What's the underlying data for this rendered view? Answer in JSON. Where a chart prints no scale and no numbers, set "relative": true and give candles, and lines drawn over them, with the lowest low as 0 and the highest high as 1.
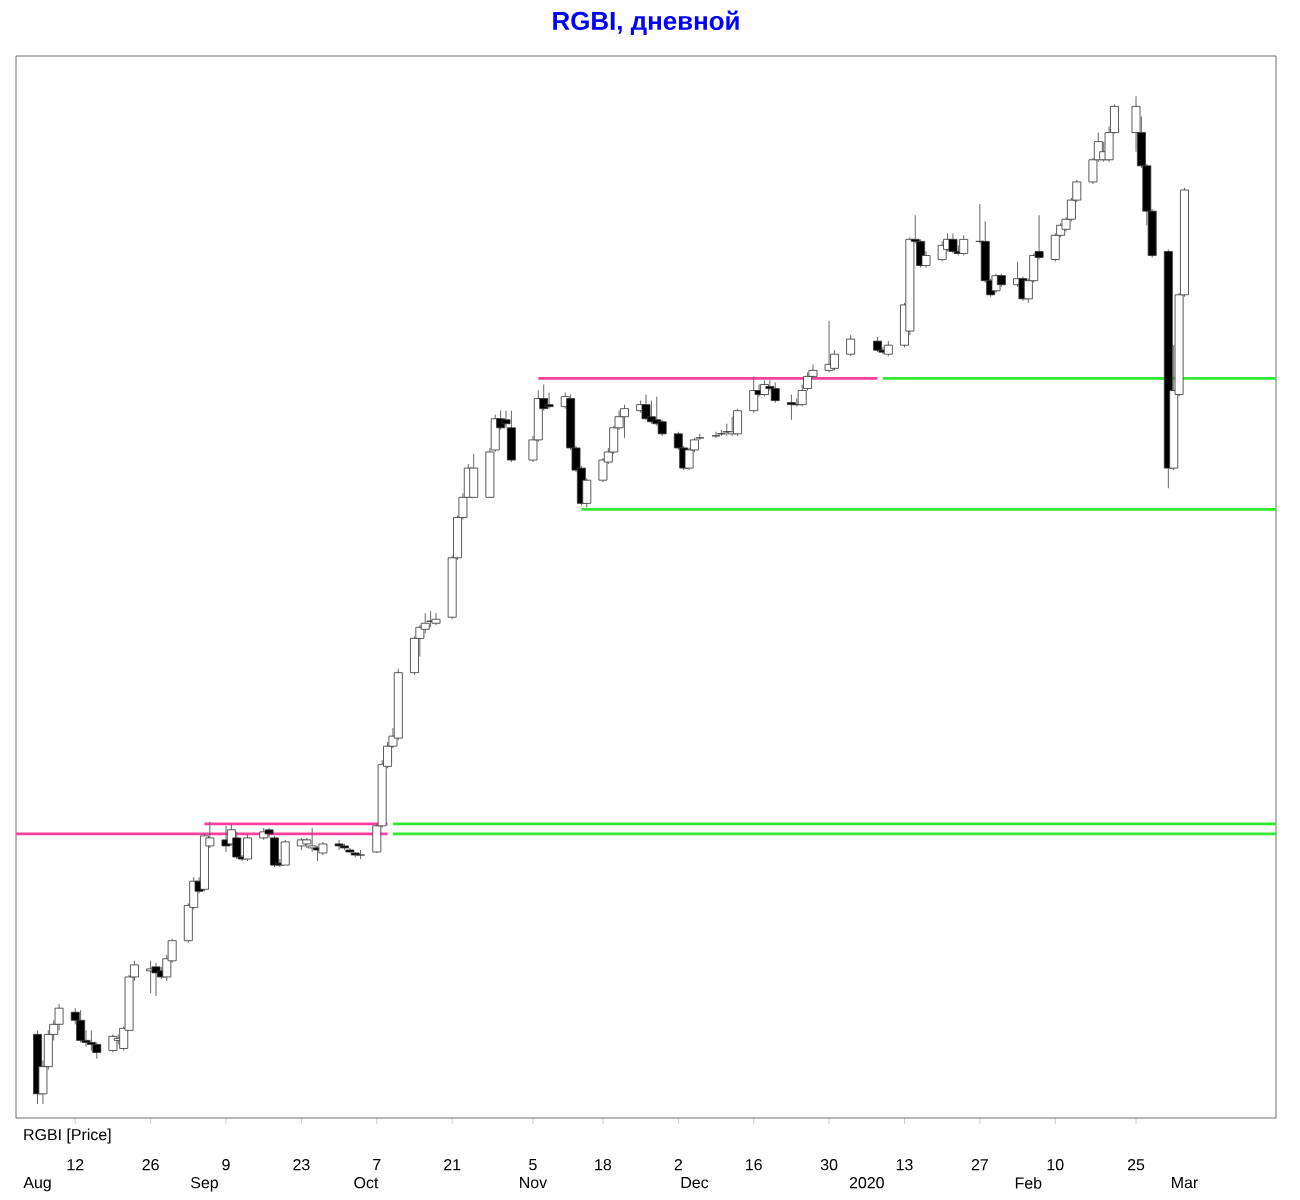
{
  "chart_data": {
    "type": "candlestick",
    "title": "RGBI, дневной",
    "relative": true,
    "x": [
      "2019-08-05",
      "2019-08-06",
      "2019-08-07",
      "2019-08-08",
      "2019-08-09",
      "2019-08-12",
      "2019-08-13",
      "2019-08-14",
      "2019-08-15",
      "2019-08-16",
      "2019-08-19",
      "2019-08-20",
      "2019-08-21",
      "2019-08-22",
      "2019-08-23",
      "2019-08-26",
      "2019-08-27",
      "2019-08-28",
      "2019-08-29",
      "2019-08-30",
      "2019-09-02",
      "2019-09-03",
      "2019-09-04",
      "2019-09-05",
      "2019-09-06",
      "2019-09-09",
      "2019-09-10",
      "2019-09-11",
      "2019-09-12",
      "2019-09-13",
      "2019-09-16",
      "2019-09-17",
      "2019-09-18",
      "2019-09-19",
      "2019-09-20",
      "2019-09-23",
      "2019-09-24",
      "2019-09-25",
      "2019-09-26",
      "2019-09-27",
      "2019-09-30",
      "2019-10-01",
      "2019-10-02",
      "2019-10-03",
      "2019-10-04",
      "2019-10-07",
      "2019-10-08",
      "2019-10-09",
      "2019-10-10",
      "2019-10-11",
      "2019-10-14",
      "2019-10-15",
      "2019-10-16",
      "2019-10-17",
      "2019-10-18",
      "2019-10-21",
      "2019-10-22",
      "2019-10-23",
      "2019-10-24",
      "2019-10-25",
      "2019-10-28",
      "2019-10-29",
      "2019-10-30",
      "2019-10-31",
      "2019-11-01",
      "2019-11-05",
      "2019-11-06",
      "2019-11-07",
      "2019-11-08",
      "2019-11-11",
      "2019-11-12",
      "2019-11-13",
      "2019-11-14",
      "2019-11-15",
      "2019-11-18",
      "2019-11-19",
      "2019-11-20",
      "2019-11-21",
      "2019-11-22",
      "2019-11-25",
      "2019-11-26",
      "2019-11-27",
      "2019-11-28",
      "2019-11-29",
      "2019-12-02",
      "2019-12-03",
      "2019-12-04",
      "2019-12-05",
      "2019-12-06",
      "2019-12-09",
      "2019-12-10",
      "2019-12-11",
      "2019-12-12",
      "2019-12-13",
      "2019-12-16",
      "2019-12-17",
      "2019-12-18",
      "2019-12-19",
      "2019-12-20",
      "2019-12-23",
      "2019-12-24",
      "2019-12-25",
      "2019-12-26",
      "2019-12-27",
      "2019-12-30",
      "2019-12-31",
      "2020-01-03",
      "2020-01-08",
      "2020-01-09",
      "2020-01-10",
      "2020-01-13",
      "2020-01-14",
      "2020-01-15",
      "2020-01-16",
      "2020-01-17",
      "2020-01-20",
      "2020-01-21",
      "2020-01-22",
      "2020-01-23",
      "2020-01-24",
      "2020-01-27",
      "2020-01-28",
      "2020-01-29",
      "2020-01-30",
      "2020-01-31",
      "2020-02-03",
      "2020-02-04",
      "2020-02-05",
      "2020-02-06",
      "2020-02-07",
      "2020-02-10",
      "2020-02-11",
      "2020-02-12",
      "2020-02-13",
      "2020-02-14",
      "2020-02-17",
      "2020-02-18",
      "2020-02-19",
      "2020-02-20",
      "2020-02-21",
      "2020-02-25",
      "2020-02-26",
      "2020-02-27",
      "2020-02-28",
      "2020-03-02",
      "2020-03-03",
      "2020-03-04",
      "2020-03-05"
    ],
    "ohlc": [
      [
        0.069,
        0.073,
        0,
        0.01
      ],
      [
        0.01,
        0.043,
        0,
        0.037
      ],
      [
        0.037,
        0.073,
        0.034,
        0.069
      ],
      [
        0.069,
        0.083,
        0.063,
        0.079
      ],
      [
        0.079,
        0.099,
        0.073,
        0.095
      ],
      [
        0.091,
        0.095,
        0.079,
        0.083
      ],
      [
        0.083,
        0.093,
        0.061,
        0.063
      ],
      [
        0.063,
        0.073,
        0.057,
        0.061
      ],
      [
        0.061,
        0.073,
        0.053,
        0.059
      ],
      [
        0.059,
        0.061,
        0.045,
        0.051
      ],
      [
        0.053,
        0.069,
        0.051,
        0.067
      ],
      [
        0.063,
        0.069,
        0.059,
        0.065
      ],
      [
        0.055,
        0.077,
        0.053,
        0.075
      ],
      [
        0.073,
        0.128,
        0.073,
        0.126
      ],
      [
        0.126,
        0.142,
        0.122,
        0.138
      ],
      [
        0.132,
        0.142,
        0.11,
        0.134
      ],
      [
        0.136,
        0.14,
        0.107,
        0.13
      ],
      [
        0.132,
        0.136,
        0.124,
        0.126
      ],
      [
        0.126,
        0.148,
        0.122,
        0.144
      ],
      [
        0.142,
        0.164,
        0.14,
        0.162
      ],
      [
        0.162,
        0.199,
        0.16,
        0.197
      ],
      [
        0.195,
        0.225,
        0.193,
        0.221
      ],
      [
        0.221,
        0.225,
        0.209,
        0.211
      ],
      [
        0.213,
        0.268,
        0.211,
        0.266
      ],
      [
        0.256,
        0.28,
        0.254,
        0.264
      ],
      [
        0.262,
        0.276,
        0.25,
        0.256
      ],
      [
        0.258,
        0.278,
        0.256,
        0.272
      ],
      [
        0.264,
        0.27,
        0.243,
        0.245
      ],
      [
        0.245,
        0.247,
        0.241,
        0.243
      ],
      [
        0.243,
        0.268,
        0.241,
        0.264
      ],
      [
        0.264,
        0.274,
        0.262,
        0.27
      ],
      [
        0.272,
        0.274,
        0.264,
        0.268
      ],
      [
        0.264,
        0.266,
        0.235,
        0.237
      ],
      [
        0.239,
        0.243,
        0.235,
        0.237
      ],
      [
        0.237,
        0.262,
        0.237,
        0.26
      ],
      [
        0.256,
        0.264,
        0.252,
        0.262
      ],
      [
        0.258,
        0.264,
        0.254,
        0.262
      ],
      [
        0.254,
        0.274,
        0.25,
        0.256
      ],
      [
        0.254,
        0.256,
        0.241,
        0.252
      ],
      [
        0.249,
        0.26,
        0.247,
        0.258
      ],
      [
        0.258,
        0.262,
        0.252,
        0.256
      ],
      [
        0.256,
        0.258,
        0.252,
        0.254
      ],
      [
        0.252,
        0.254,
        0.249,
        0.25
      ],
      [
        0.249,
        0.25,
        0.245,
        0.247
      ],
      [
        0.247,
        0.252,
        0.243,
        0.247
      ],
      [
        0.25,
        0.278,
        0.249,
        0.276
      ],
      [
        0.276,
        0.341,
        0.274,
        0.337
      ],
      [
        0.335,
        0.359,
        0.333,
        0.355
      ],
      [
        0.355,
        0.373,
        0.353,
        0.365
      ],
      [
        0.363,
        0.432,
        0.361,
        0.428
      ],
      [
        0.428,
        0.464,
        0.426,
        0.462
      ],
      [
        0.462,
        0.475,
        0.444,
        0.473
      ],
      [
        0.471,
        0.487,
        0.467,
        0.477
      ],
      [
        0.479,
        0.489,
        0.473,
        0.479
      ],
      [
        0.477,
        0.487,
        0.475,
        0.481
      ],
      [
        0.483,
        0.544,
        0.481,
        0.542
      ],
      [
        0.542,
        0.584,
        0.54,
        0.582
      ],
      [
        0.582,
        0.606,
        0.58,
        0.602
      ],
      [
        0.602,
        0.635,
        0.602,
        0.631
      ],
      [
        0.602,
        0.645,
        0.602,
        0.631
      ],
      [
        0.602,
        0.651,
        0.602,
        0.647
      ],
      [
        0.649,
        0.684,
        0.647,
        0.68
      ],
      [
        0.68,
        0.688,
        0.669,
        0.671
      ],
      [
        0.679,
        0.688,
        0.671,
        0.675
      ],
      [
        0.671,
        0.688,
        0.637,
        0.639
      ],
      [
        0.639,
        0.663,
        0.637,
        0.659
      ],
      [
        0.659,
        0.708,
        0.657,
        0.7
      ],
      [
        0.7,
        0.714,
        0.688,
        0.69
      ],
      [
        0.694,
        0.706,
        0.69,
        0.692
      ],
      [
        0.692,
        0.706,
        0.69,
        0.702
      ],
      [
        0.7,
        0.704,
        0.649,
        0.651
      ],
      [
        0.651,
        0.653,
        0.627,
        0.629
      ],
      [
        0.631,
        0.633,
        0.594,
        0.596
      ],
      [
        0.596,
        0.621,
        0.592,
        0.619
      ],
      [
        0.619,
        0.641,
        0.617,
        0.639
      ],
      [
        0.637,
        0.651,
        0.635,
        0.647
      ],
      [
        0.647,
        0.673,
        0.645,
        0.671
      ],
      [
        0.671,
        0.688,
        0.669,
        0.682
      ],
      [
        0.682,
        0.694,
        0.661,
        0.69
      ],
      [
        0.688,
        0.698,
        0.686,
        0.694
      ],
      [
        0.694,
        0.704,
        0.679,
        0.68
      ],
      [
        0.682,
        0.698,
        0.675,
        0.677
      ],
      [
        0.679,
        0.702,
        0.673,
        0.675
      ],
      [
        0.677,
        0.679,
        0.663,
        0.665
      ],
      [
        0.665,
        0.667,
        0.649,
        0.651
      ],
      [
        0.651,
        0.653,
        0.629,
        0.631
      ],
      [
        0.631,
        0.651,
        0.629,
        0.649
      ],
      [
        0.649,
        0.661,
        0.647,
        0.659
      ],
      [
        0.661,
        0.665,
        0.659,
        0.661
      ],
      [
        0.663,
        0.667,
        0.661,
        0.663
      ],
      [
        0.665,
        0.669,
        0.663,
        0.665
      ],
      [
        0.667,
        0.675,
        0.663,
        0.667
      ],
      [
        0.665,
        0.682,
        0.663,
        0.667
      ],
      [
        0.665,
        0.69,
        0.663,
        0.688
      ],
      [
        0.688,
        0.722,
        0.686,
        0.708
      ],
      [
        0.708,
        0.714,
        0.702,
        0.704
      ],
      [
        0.704,
        0.718,
        0.702,
        0.714
      ],
      [
        0.712,
        0.718,
        0.708,
        0.71
      ],
      [
        0.71,
        0.716,
        0.696,
        0.698
      ],
      [
        0.696,
        0.704,
        0.679,
        0.694
      ],
      [
        0.694,
        0.7,
        0.692,
        0.694
      ],
      [
        0.694,
        0.714,
        0.692,
        0.708
      ],
      [
        0.71,
        0.726,
        0.708,
        0.722
      ],
      [
        0.722,
        0.734,
        0.72,
        0.728
      ],
      [
        0.728,
        0.777,
        0.726,
        0.734
      ],
      [
        0.73,
        0.748,
        0.728,
        0.744
      ],
      [
        0.744,
        0.763,
        0.742,
        0.759
      ],
      [
        0.757,
        0.761,
        0.746,
        0.748
      ],
      [
        0.748,
        0.751,
        0.744,
        0.746
      ],
      [
        0.744,
        0.757,
        0.742,
        0.753
      ],
      [
        0.753,
        0.795,
        0.751,
        0.793
      ],
      [
        0.767,
        0.86,
        0.763,
        0.858
      ],
      [
        0.858,
        0.882,
        0.854,
        0.856
      ],
      [
        0.856,
        0.858,
        0.83,
        0.832
      ],
      [
        0.832,
        0.846,
        0.83,
        0.842
      ],
      [
        0.838,
        0.856,
        0.836,
        0.852
      ],
      [
        0.848,
        0.864,
        0.846,
        0.858
      ],
      [
        0.858,
        0.864,
        0.844,
        0.846
      ],
      [
        0.846,
        0.852,
        0.842,
        0.844
      ],
      [
        0.844,
        0.862,
        0.842,
        0.858
      ],
      [
        0.856,
        0.893,
        0.854,
        0.856
      ],
      [
        0.856,
        0.876,
        0.815,
        0.817
      ],
      [
        0.817,
        0.819,
        0.801,
        0.803
      ],
      [
        0.807,
        0.824,
        0.805,
        0.822
      ],
      [
        0.822,
        0.824,
        0.811,
        0.813
      ],
      [
        0.813,
        0.836,
        0.811,
        0.819
      ],
      [
        0.819,
        0.821,
        0.797,
        0.799
      ],
      [
        0.799,
        0.819,
        0.795,
        0.817
      ],
      [
        0.817,
        0.844,
        0.815,
        0.842
      ],
      [
        0.846,
        0.882,
        0.838,
        0.84
      ],
      [
        0.838,
        0.864,
        0.836,
        0.862
      ],
      [
        0.862,
        0.874,
        0.86,
        0.872
      ],
      [
        0.868,
        0.88,
        0.866,
        0.878
      ],
      [
        0.878,
        0.899,
        0.876,
        0.897
      ],
      [
        0.897,
        0.917,
        0.895,
        0.915
      ],
      [
        0.915,
        0.939,
        0.913,
        0.937
      ],
      [
        0.937,
        0.964,
        0.935,
        0.955
      ],
      [
        0.937,
        0.955,
        0.935,
        0.945
      ],
      [
        0.937,
        0.97,
        0.935,
        0.964
      ],
      [
        0.964,
        0.992,
        0.963,
        0.99
      ],
      [
        0.964,
        1.0,
        0.945,
        0.99
      ],
      [
        0.964,
        0.98,
        0.929,
        0.931
      ],
      [
        0.931,
        0.933,
        0.872,
        0.886
      ],
      [
        0.886,
        0.888,
        0.84,
        0.842
      ],
      [
        0.846,
        0.848,
        0.611,
        0.631
      ],
      [
        0.631,
        0.753,
        0.629,
        0.708
      ],
      [
        0.704,
        0.805,
        0.702,
        0.803
      ],
      [
        0.803,
        0.909,
        0.801,
        0.907
      ]
    ],
    "series": [
      {
        "type": "line",
        "color": "#ff3fa0",
        "x": [
          "2019-08-01",
          "2019-10-09"
        ],
        "values": [
          0.268,
          0.268
        ]
      },
      {
        "type": "line",
        "color": "#ff3fa0",
        "x": [
          "2019-09-05",
          "2019-10-09"
        ],
        "values": [
          0.278,
          0.278
        ]
      },
      {
        "type": "line",
        "color": "#33e833",
        "x": [
          "2019-10-10",
          "2020-03-22"
        ],
        "values": [
          0.268,
          0.268
        ]
      },
      {
        "type": "line",
        "color": "#33e833",
        "x": [
          "2019-10-10",
          "2020-03-22"
        ],
        "values": [
          0.278,
          0.278
        ]
      },
      {
        "type": "line",
        "color": "#ff3fa0",
        "x": [
          "2019-11-06",
          "2020-01-08"
        ],
        "values": [
          0.72,
          0.72
        ]
      },
      {
        "type": "line",
        "color": "#33e833",
        "x": [
          "2020-01-09",
          "2020-03-22"
        ],
        "values": [
          0.72,
          0.72
        ]
      },
      {
        "type": "line",
        "color": "#33e833",
        "x": [
          "2019-11-14",
          "2020-03-22"
        ],
        "values": [
          0.59,
          0.59
        ]
      }
    ],
    "xlim": [
      "2019-08-01",
      "2020-03-22"
    ],
    "xticks": [
      {
        "value": "2019-08-12",
        "label": "12"
      },
      {
        "value": "2019-08-26",
        "label": "26"
      },
      {
        "value": "2019-09-09",
        "label": "9"
      },
      {
        "value": "2019-09-23",
        "label": "23"
      },
      {
        "value": "2019-10-07",
        "label": "7"
      },
      {
        "value": "2019-10-21",
        "label": "21"
      },
      {
        "value": "2019-11-05",
        "label": "5"
      },
      {
        "value": "2019-11-18",
        "label": "18"
      },
      {
        "value": "2019-12-02",
        "label": "2"
      },
      {
        "value": "2019-12-16",
        "label": "16"
      },
      {
        "value": "2019-12-30",
        "label": "30"
      },
      {
        "value": "2020-01-13",
        "label": "13"
      },
      {
        "value": "2020-01-27",
        "label": "27"
      },
      {
        "value": "2020-02-10",
        "label": "10"
      },
      {
        "value": "2020-02-25",
        "label": "25"
      }
    ],
    "x2lim": [
      "2019-08-01",
      "2020-03-22"
    ],
    "x2ticks": [
      {
        "value": "2019-08-05",
        "label": "Aug"
      },
      {
        "value": "2019-09-05",
        "label": "Sep"
      },
      {
        "value": "2019-10-05",
        "label": "Oct"
      },
      {
        "value": "2019-11-05",
        "label": "Nov"
      },
      {
        "value": "2019-12-05",
        "label": "Dec"
      },
      {
        "value": "2020-01-06",
        "label": "2020"
      },
      {
        "value": "2020-02-05",
        "label": "Feb"
      },
      {
        "value": "2020-03-05",
        "label": "Mar"
      }
    ],
    "annotations": [
      "RGBI [Price]"
    ]
  }
}
